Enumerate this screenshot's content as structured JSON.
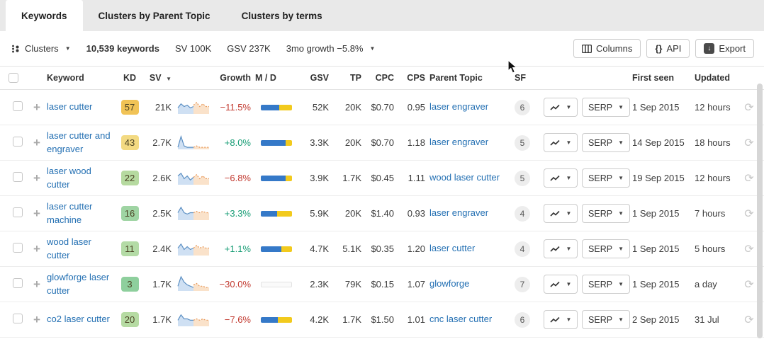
{
  "tabs": [
    {
      "label": "Keywords",
      "active": true
    },
    {
      "label": "Clusters by Parent Topic",
      "active": false
    },
    {
      "label": "Clusters by terms",
      "active": false
    }
  ],
  "toolbar": {
    "clusters_label": "Clusters",
    "keywords_count": "10,539 keywords",
    "sv_total": "SV 100K",
    "gsv_total": "GSV 237K",
    "growth_summary": "3mo growth −5.8%",
    "columns_label": "Columns",
    "api_label": "API",
    "export_label": "Export"
  },
  "table": {
    "headers": {
      "keyword": "Keyword",
      "kd": "KD",
      "sv": "SV",
      "growth": "Growth",
      "md": "M / D",
      "gsv": "GSV",
      "tp": "TP",
      "cpc": "CPC",
      "cps": "CPS",
      "parent": "Parent Topic",
      "sf": "SF",
      "first": "First seen",
      "updated": "Updated"
    },
    "serp_label": "SERP",
    "colors": {
      "md_blue": "#3579c8",
      "md_yellow": "#f2ca1d",
      "growth_pos": "#169c74",
      "growth_neg": "#c23a30",
      "link": "#2470b3"
    },
    "rows": [
      {
        "keyword": "laser cutter",
        "kd": "57",
        "kd_color": "#f1c356",
        "sv": "21K",
        "growth": "−11.5%",
        "md_blue": 60,
        "md_yellow": 40,
        "gsv": "52K",
        "tp": "20K",
        "cpc": "$0.70",
        "cps": "0.95",
        "parent": "laser engraver",
        "sf": "6",
        "first": "1 Sep 2015",
        "updated": "12 hours",
        "trend_blue": [
          4,
          7,
          5,
          6,
          4,
          5
        ],
        "trend_orange": [
          6,
          8,
          5,
          7,
          5,
          5
        ]
      },
      {
        "keyword": "laser cutter and engraver",
        "kd": "43",
        "kd_color": "#f3da82",
        "sv": "2.7K",
        "growth": "+8.0%",
        "md_blue": 80,
        "md_yellow": 20,
        "gsv": "3.3K",
        "tp": "20K",
        "cpc": "$0.70",
        "cps": "1.18",
        "parent": "laser engraver",
        "sf": "5",
        "first": "14 Sep 2015",
        "updated": "18 hours",
        "trend_blue": [
          1,
          9,
          2,
          1,
          1,
          1
        ],
        "trend_orange": [
          1,
          2,
          1,
          1,
          1,
          1
        ]
      },
      {
        "keyword": "laser wood cutter",
        "kd": "22",
        "kd_color": "#b6daa0",
        "sv": "2.6K",
        "growth": "−6.8%",
        "md_blue": 80,
        "md_yellow": 20,
        "gsv": "3.9K",
        "tp": "1.7K",
        "cpc": "$0.45",
        "cps": "1.11",
        "parent": "wood laser cutter",
        "sf": "5",
        "first": "19 Sep 2015",
        "updated": "12 hours",
        "trend_blue": [
          6,
          8,
          4,
          6,
          3,
          5
        ],
        "trend_orange": [
          5,
          7,
          4,
          6,
          4,
          4
        ]
      },
      {
        "keyword": "laser cutter machine",
        "kd": "16",
        "kd_color": "#9fd4a3",
        "sv": "2.5K",
        "growth": "+3.3%",
        "md_blue": 52,
        "md_yellow": 48,
        "gsv": "5.9K",
        "tp": "20K",
        "cpc": "$1.40",
        "cps": "0.93",
        "parent": "laser engraver",
        "sf": "4",
        "first": "1 Sep 2015",
        "updated": "7 hours",
        "trend_blue": [
          5,
          9,
          5,
          4,
          5,
          5
        ],
        "trend_orange": [
          5,
          6,
          5,
          6,
          5,
          5
        ]
      },
      {
        "keyword": "wood laser cutter",
        "kd": "11",
        "kd_color": "#b4dba6",
        "sv": "2.4K",
        "growth": "+1.1%",
        "md_blue": 65,
        "md_yellow": 35,
        "gsv": "4.7K",
        "tp": "5.1K",
        "cpc": "$0.35",
        "cps": "1.20",
        "parent": "laser cutter",
        "sf": "4",
        "first": "1 Sep 2015",
        "updated": "5 hours",
        "trend_blue": [
          5,
          8,
          4,
          6,
          4,
          5
        ],
        "trend_orange": [
          5,
          7,
          5,
          6,
          5,
          5
        ]
      },
      {
        "keyword": "glowforge laser cutter",
        "kd": "3",
        "kd_color": "#8ecf9d",
        "sv": "1.7K",
        "growth": "−30.0%",
        "md_blue": 0,
        "md_yellow": 0,
        "gsv": "2.3K",
        "tp": "79K",
        "cpc": "$0.15",
        "cps": "1.07",
        "parent": "glowforge",
        "sf": "7",
        "first": "1 Sep 2015",
        "updated": "a day",
        "trend_blue": [
          3,
          10,
          6,
          4,
          3,
          2
        ],
        "trend_orange": [
          4,
          5,
          3,
          3,
          2,
          2
        ]
      },
      {
        "keyword": "co2 laser cutter",
        "kd": "20",
        "kd_color": "#b6dba3",
        "sv": "1.7K",
        "growth": "−7.6%",
        "md_blue": 55,
        "md_yellow": 45,
        "gsv": "4.2K",
        "tp": "1.7K",
        "cpc": "$1.50",
        "cps": "1.01",
        "parent": "cnc laser cutter",
        "sf": "6",
        "first": "2 Sep 2015",
        "updated": "31 Jul",
        "trend_blue": [
          4,
          8,
          5,
          5,
          4,
          4
        ],
        "trend_orange": [
          4,
          5,
          4,
          5,
          4,
          4
        ]
      }
    ]
  }
}
